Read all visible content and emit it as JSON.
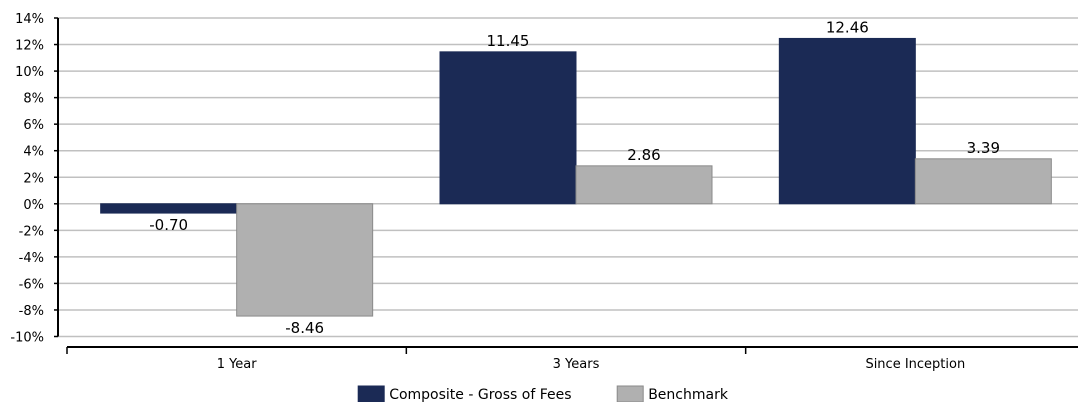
{
  "chart_data": {
    "type": "bar",
    "categories": [
      "1 Year",
      "3 Years",
      "Since Inception"
    ],
    "series": [
      {
        "name": "Composite - Gross of Fees",
        "values": [
          -0.7,
          11.45,
          12.46
        ],
        "labels": [
          "-0.70",
          "11.45",
          "12.46"
        ],
        "color": "#1b2a55"
      },
      {
        "name": "Benchmark",
        "values": [
          -8.46,
          2.86,
          3.39
        ],
        "labels": [
          "-8.46",
          "2.86",
          "3.39"
        ],
        "color": "#b0b0b0"
      }
    ],
    "ylim": [
      -10,
      14
    ],
    "ytick_step": 2,
    "ytick_suffix": "%",
    "grid": true,
    "legend": "bottom-center",
    "title": "",
    "xlabel": "",
    "ylabel": ""
  }
}
